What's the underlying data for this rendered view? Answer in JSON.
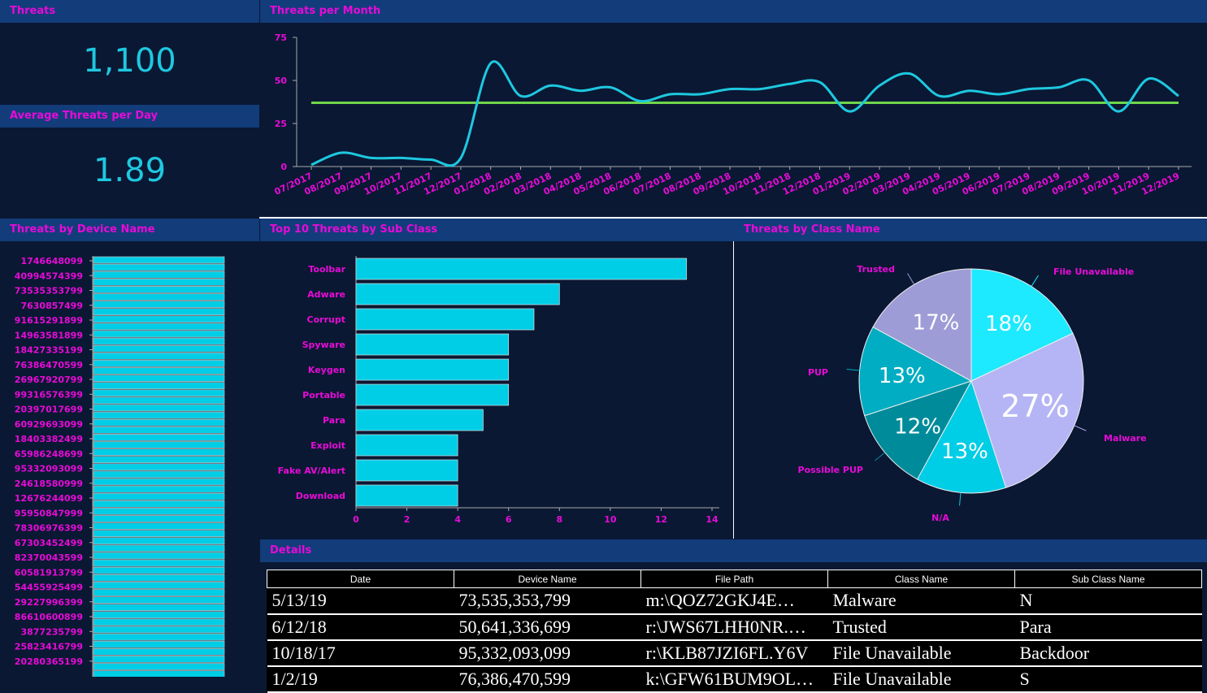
{
  "threats": {
    "title": "Threats",
    "value": "1,100"
  },
  "avg": {
    "title": "Average Threats per Day",
    "value": "1.89"
  },
  "panels": {
    "per_month": "Threats per Month",
    "device": "Threats by Device Name",
    "subclass": "Top 10 Threats by Sub Class",
    "classname": "Threats by Class Name",
    "details": "Details"
  },
  "colors": {
    "line": "#1ec8e0",
    "average": "#6fd64a",
    "bar": "#00cde6",
    "label": "#e80ad8",
    "header_bg": "#133c7a",
    "bg": "#0a1833"
  },
  "chart_data": [
    {
      "type": "line",
      "title": "Threats per Month",
      "ylim": [
        0,
        75
      ],
      "yticks": [
        0,
        25,
        50,
        75
      ],
      "x": [
        "07/2017",
        "08/2017",
        "09/2017",
        "10/2017",
        "11/2017",
        "12/2017",
        "01/2018",
        "02/2018",
        "03/2018",
        "04/2018",
        "05/2018",
        "06/2018",
        "07/2018",
        "08/2018",
        "09/2018",
        "10/2018",
        "11/2018",
        "12/2018",
        "01/2019",
        "02/2019",
        "03/2019",
        "04/2019",
        "05/2019",
        "06/2019",
        "07/2019",
        "08/2019",
        "09/2019",
        "10/2019",
        "11/2019",
        "12/2019"
      ],
      "values": [
        1,
        8,
        5,
        5,
        4,
        5,
        60,
        41,
        47,
        44,
        46,
        38,
        42,
        42,
        45,
        45,
        48,
        49,
        32,
        47,
        54,
        41,
        44,
        42,
        45,
        46,
        50,
        32,
        51,
        41
      ],
      "average": 37
    },
    {
      "type": "bar",
      "orientation": "horizontal",
      "title": "Threats by Device Name",
      "categories": [
        "1746648099",
        "40994574399",
        "73535353799",
        "7630857499",
        "91615291899",
        "14963581899",
        "18427335199",
        "76386470599",
        "26967920799",
        "99316576399",
        "20397017699",
        "60929693099",
        "18403382499",
        "65986248699",
        "95332093099",
        "24618580999",
        "12676244099",
        "95950847999",
        "78306976399",
        "67303452499",
        "82370043599",
        "60581913799",
        "54455925499",
        "29227996399",
        "86610600899",
        "3877235799",
        "25823416799",
        "20280365199"
      ]
    },
    {
      "type": "bar",
      "orientation": "horizontal",
      "title": "Top 10 Threats by Sub Class",
      "xlim": [
        0,
        14
      ],
      "xticks": [
        0,
        2,
        4,
        6,
        8,
        10,
        12,
        14
      ],
      "categories": [
        "Toolbar",
        "Adware",
        "Corrupt",
        "Spyware",
        "Keygen",
        "Portable",
        "Para",
        "Exploit",
        "Fake AV/Alert",
        "Download"
      ],
      "values": [
        13,
        8,
        7,
        6,
        6,
        6,
        5,
        4,
        4,
        4
      ]
    },
    {
      "type": "pie",
      "title": "Threats by Class Name",
      "categories": [
        "File Unavailable",
        "Malware",
        "N/A",
        "Possible PUP",
        "PUP",
        "Trusted"
      ],
      "values": [
        18,
        27,
        13,
        12,
        13,
        17
      ],
      "labels": [
        "18%",
        "27%",
        "13%",
        "12%",
        "13%",
        "17%"
      ],
      "colors": [
        "#1de9ff",
        "#b5b5f5",
        "#00cde6",
        "#008b9a",
        "#00adc2",
        "#9e9cd6"
      ]
    }
  ],
  "table": {
    "columns": [
      "Date",
      "Device Name",
      "File Path",
      "Class Name",
      "Sub Class Name"
    ],
    "rows": [
      [
        "5/13/19",
        "73,535,353,799",
        "m:\\QOZ72GKJ4E…",
        "Malware",
        "N"
      ],
      [
        "6/12/18",
        "50,641,336,699",
        "r:\\JWS67LHH0NR.…",
        "Trusted",
        "Para"
      ],
      [
        "10/18/17",
        "95,332,093,099",
        "r:\\KLB87JZI6FL.Y6V",
        "File Unavailable",
        "Backdoor"
      ],
      [
        "1/2/19",
        "76,386,470,599",
        "k:\\GFW61BUM9OL…",
        "File Unavailable",
        "S"
      ]
    ]
  }
}
